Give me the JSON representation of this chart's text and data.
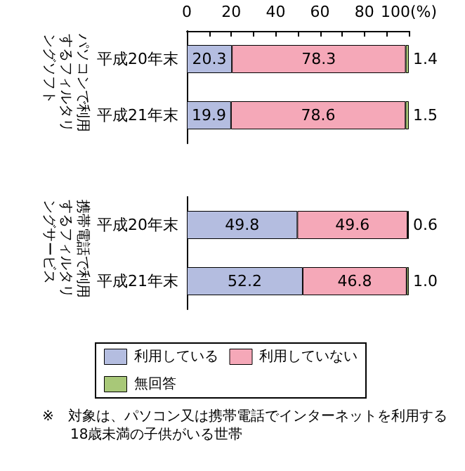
{
  "chart_data": [
    {
      "type": "bar",
      "orientation": "horizontal",
      "stacked": true,
      "ylabel": "パソコンで利用するフィルタリングソフト",
      "categories": [
        "平成20年末",
        "平成21年末"
      ],
      "series": [
        {
          "name": "利用している",
          "color": "#b4bde0",
          "values": [
            20.3,
            19.9
          ]
        },
        {
          "name": "利用していない",
          "color": "#f5a8b8",
          "values": [
            78.3,
            78.6
          ]
        },
        {
          "name": "無回答",
          "color": "#a8c878",
          "values": [
            1.4,
            1.5
          ]
        }
      ],
      "xlim": [
        0,
        100
      ],
      "xticks": [
        0,
        {
          "value": 10,
          "label": null
        },
        20,
        {
          "value": 30,
          "label": null
        },
        40,
        {
          "value": 50,
          "label": null
        },
        60,
        {
          "value": 70,
          "label": null
        },
        80,
        {
          "value": 90,
          "label": null
        },
        {
          "value": 100,
          "label": "100(%)"
        }
      ],
      "data_labels": true,
      "legend": "bottom"
    },
    {
      "type": "bar",
      "orientation": "horizontal",
      "stacked": true,
      "ylabel": "携帯電話で利用するフィルタリングサービス",
      "categories": [
        "平成20年末",
        "平成21年末"
      ],
      "series": [
        {
          "color": "#b4bde0",
          "values": [
            49.8,
            52.2
          ]
        },
        {
          "color": "#f5a8b8",
          "values": [
            49.6,
            46.8
          ]
        },
        {
          "color": "#a8c878",
          "values": [
            0.6,
            1.0
          ],
          "value_labels": [
            "0.6",
            "1.0"
          ]
        }
      ],
      "xlim": [
        0,
        100
      ],
      "tick_labels": "y",
      "data_labels": true,
      "annotations": [
        "※　対象は、パソコン又は携帯電話でインターネットを利用する18歳未満の子供がいる世帯"
      ]
    }
  ]
}
